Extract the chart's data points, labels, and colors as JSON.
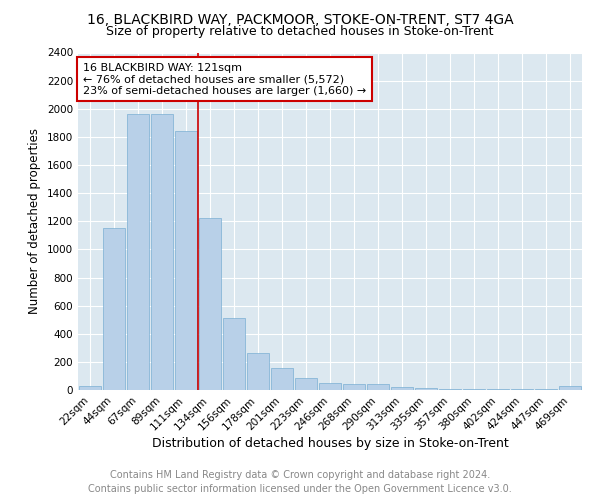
{
  "title": "16, BLACKBIRD WAY, PACKMOOR, STOKE-ON-TRENT, ST7 4GA",
  "subtitle": "Size of property relative to detached houses in Stoke-on-Trent",
  "xlabel": "Distribution of detached houses by size in Stoke-on-Trent",
  "ylabel": "Number of detached properties",
  "categories": [
    "22sqm",
    "44sqm",
    "67sqm",
    "89sqm",
    "111sqm",
    "134sqm",
    "156sqm",
    "178sqm",
    "201sqm",
    "223sqm",
    "246sqm",
    "268sqm",
    "290sqm",
    "313sqm",
    "335sqm",
    "357sqm",
    "380sqm",
    "402sqm",
    "424sqm",
    "447sqm",
    "469sqm"
  ],
  "values": [
    30,
    1150,
    1960,
    1960,
    1840,
    1220,
    510,
    265,
    155,
    85,
    50,
    40,
    40,
    20,
    15,
    10,
    5,
    5,
    5,
    5,
    25
  ],
  "bar_color": "#b8d0e8",
  "bar_edge_color": "#7aafd4",
  "annotation_title": "16 BLACKBIRD WAY: 121sqm",
  "annotation_line1": "← 76% of detached houses are smaller (5,572)",
  "annotation_line2": "23% of semi-detached houses are larger (1,660) →",
  "annotation_box_color": "#ffffff",
  "annotation_box_edge_color": "#cc0000",
  "vline_color": "#cc0000",
  "vline_x": 4.5,
  "ylim": [
    0,
    2400
  ],
  "yticks": [
    0,
    200,
    400,
    600,
    800,
    1000,
    1200,
    1400,
    1600,
    1800,
    2000,
    2200,
    2400
  ],
  "footer_line1": "Contains HM Land Registry data © Crown copyright and database right 2024.",
  "footer_line2": "Contains public sector information licensed under the Open Government Licence v3.0.",
  "title_fontsize": 10,
  "subtitle_fontsize": 9,
  "xlabel_fontsize": 9,
  "ylabel_fontsize": 8.5,
  "tick_fontsize": 7.5,
  "annotation_fontsize": 8,
  "footer_fontsize": 7,
  "bg_color": "#dce8f0"
}
